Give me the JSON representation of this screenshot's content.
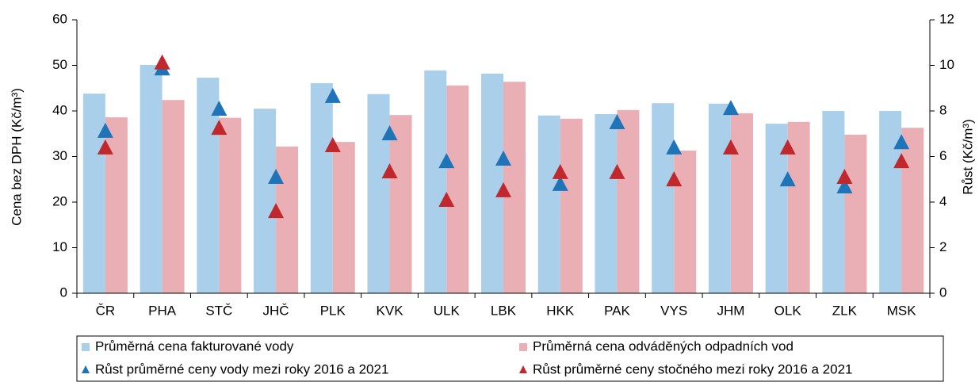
{
  "chart_data": {
    "type": "bar",
    "categories": [
      "ČR",
      "PHA",
      "STČ",
      "JHČ",
      "PLK",
      "KVK",
      "ULK",
      "LBK",
      "HKK",
      "PAK",
      "VYS",
      "JHM",
      "OLK",
      "ZLK",
      "MSK"
    ],
    "ylabel": "Cena bez DPH (Kč/m³)",
    "y2label": "Růst (Kč/m³)",
    "ylim": [
      0,
      60
    ],
    "yticks": [
      0,
      10,
      20,
      30,
      40,
      50,
      60
    ],
    "y2lim": [
      0,
      12
    ],
    "y2ticks": [
      0,
      2,
      4,
      6,
      8,
      10,
      12
    ],
    "grid": false,
    "legend": "bottom",
    "series": [
      {
        "name": "Průměrná cena fakturované vody",
        "type": "bar",
        "color": "#a9cfeb",
        "values": [
          43.8,
          50.1,
          47.3,
          40.5,
          46.1,
          43.7,
          48.9,
          48.2,
          39.0,
          39.3,
          41.7,
          41.6,
          37.2,
          40.0,
          40.0
        ]
      },
      {
        "name": "Průměrná cena odváděných odpadních vod",
        "type": "bar",
        "color": "#e9afb5",
        "values": [
          38.6,
          42.4,
          38.5,
          32.2,
          33.2,
          39.1,
          45.6,
          46.4,
          38.3,
          40.2,
          31.3,
          39.5,
          37.6,
          34.8,
          36.3
        ]
      },
      {
        "name": "Růst průměrné ceny vody mezi roky 2016 a 2021",
        "type": "scatter",
        "axis": "y2",
        "color": "#1f74b8",
        "values": [
          7.1,
          9.84,
          8.07,
          5.08,
          8.63,
          6.99,
          5.77,
          5.88,
          4.77,
          7.48,
          6.37,
          8.1,
          4.97,
          4.66,
          6.6
        ]
      },
      {
        "name": "Růst průměrné ceny stočného mezi roky 2016 a 2021",
        "type": "scatter",
        "axis": "y2",
        "color": "#c0282e",
        "values": [
          6.37,
          10.1,
          7.23,
          3.58,
          6.47,
          5.32,
          4.07,
          4.49,
          5.29,
          5.29,
          4.97,
          6.37,
          6.37,
          5.08,
          5.77
        ]
      }
    ]
  }
}
